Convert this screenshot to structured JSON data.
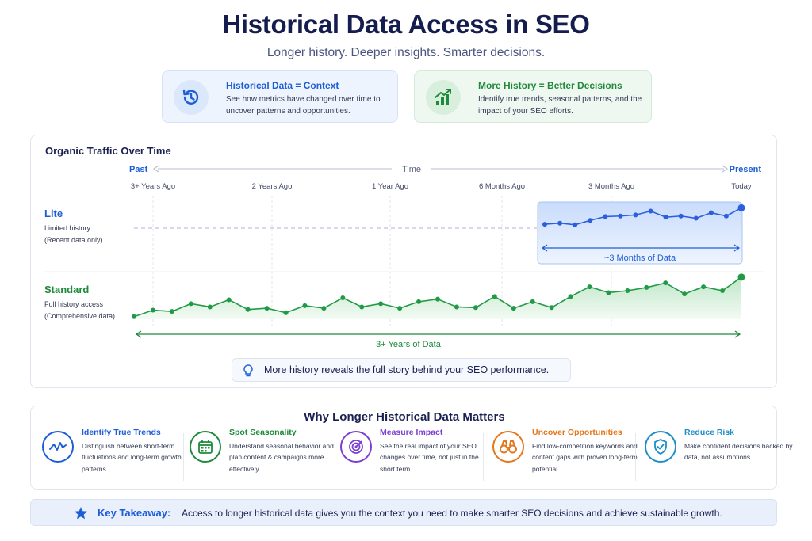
{
  "header": {
    "title": "Historical Data Access in SEO",
    "subtitle": "Longer history. Deeper insights. Smarter decisions."
  },
  "cards": [
    {
      "title": "Historical Data = Context",
      "desc": "See how metrics have changed over time to uncover patterns and opportunities.",
      "icon": "history-clock-icon",
      "color": "#1d5ed8"
    },
    {
      "title": "More History = Better Decisions",
      "desc": "Identify true trends, seasonal patterns, and the impact of your SEO efforts.",
      "icon": "growth-chart-icon",
      "color": "#1f8a3b"
    }
  ],
  "chart_data": {
    "type": "line",
    "title": "Organic Traffic Over Time",
    "axis": {
      "label": "Time",
      "start_label": "Past",
      "end_label": "Present"
    },
    "x_ticks": [
      "3+ Years Ago",
      "2 Years Ago",
      "1 Year Ago",
      "6 Months Ago",
      "3 Months Ago",
      "Today"
    ],
    "series": [
      {
        "name": "Lite",
        "desc1": "Limited history",
        "desc2": "(Recent data only)",
        "range_label": "~3 Months of Data",
        "color": "#2b5fe0",
        "values": [
          23,
          25,
          22,
          30,
          37,
          38,
          40,
          47,
          36,
          38,
          34,
          44,
          38,
          53
        ]
      },
      {
        "name": "Standard",
        "desc1": "Full history access",
        "desc2": "(Comprehensive data)",
        "range_label": "3+ Years of Data",
        "color": "#219a46",
        "values": [
          4,
          14,
          12,
          24,
          19,
          30,
          15,
          17,
          10,
          21,
          17,
          33,
          19,
          24,
          17,
          27,
          31,
          19,
          18,
          35,
          17,
          27,
          18,
          35,
          50,
          41,
          44,
          49,
          56,
          39,
          50,
          44,
          65
        ]
      }
    ]
  },
  "tip": {
    "text": "More history reveals the full story behind your SEO performance."
  },
  "why": {
    "title": "Why Longer Historical Data Matters",
    "items": [
      {
        "title": "Identify True Trends",
        "desc": "Distinguish between short-term fluctuations and long-term growth patterns.",
        "icon": "trend-line-icon",
        "color": "#1d5ed8"
      },
      {
        "title": "Spot Seasonality",
        "desc": "Understand seasonal behavior and plan content & campaigns more effectively.",
        "icon": "calendar-icon",
        "color": "#1f8a3b"
      },
      {
        "title": "Measure Impact",
        "desc": "See the real impact of your SEO changes over time, not just in the short term.",
        "icon": "target-icon",
        "color": "#7b3fd4"
      },
      {
        "title": "Uncover Opportunities",
        "desc": "Find low-competition keywords and content gaps with proven long-term potential.",
        "icon": "binoculars-icon",
        "color": "#e4771b"
      },
      {
        "title": "Reduce Risk",
        "desc": "Make confident decisions backed by data, not assumptions.",
        "icon": "shield-check-icon",
        "color": "#1e8ec9"
      }
    ]
  },
  "takeaway": {
    "label": "Key Takeaway:",
    "text": "Access to longer historical data gives you the context you need to make smarter SEO decisions and achieve sustainable growth."
  }
}
